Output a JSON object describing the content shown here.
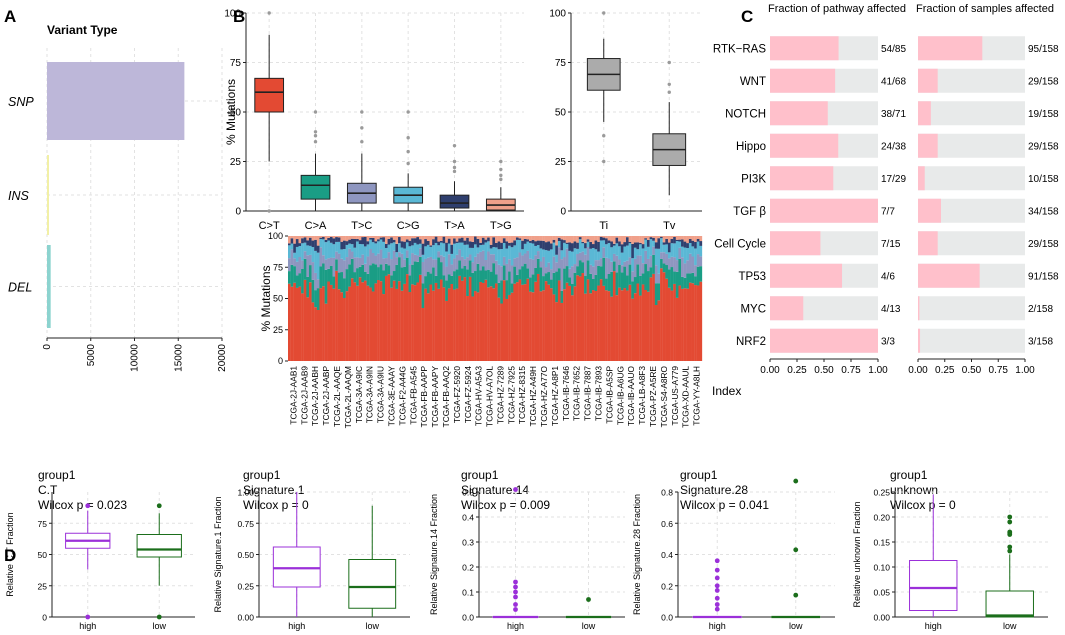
{
  "panel_labels": [
    "A",
    "B",
    "C",
    "D"
  ],
  "chart_data": [
    {
      "id": "A",
      "type": "bar",
      "orientation": "horizontal",
      "title": "Variant Type",
      "categories": [
        "SNP",
        "INS",
        "DEL"
      ],
      "values": [
        15700,
        70,
        420
      ],
      "colors": [
        "#bdb7d9",
        "#f2f0a6",
        "#8cd3cf"
      ],
      "xlim": [
        0,
        20000
      ],
      "xticks": [
        "0",
        "5000",
        "10000",
        "15000",
        "20000"
      ]
    },
    {
      "id": "B1",
      "type": "box",
      "ylabel": "% Mutations",
      "ylim": [
        0,
        100
      ],
      "yticks": [
        "0",
        "25",
        "50",
        "75",
        "100"
      ],
      "categories": [
        "C>T",
        "C>A",
        "T>C",
        "C>G",
        "T>A",
        "T>G"
      ],
      "colors": [
        "#e34a33",
        "#1a9d85",
        "#8e96c0",
        "#5ab8d5",
        "#2f3f6e",
        "#f0a08a"
      ],
      "boxes": [
        {
          "min": 25,
          "q1": 50,
          "median": 60,
          "q3": 67,
          "max": 89,
          "outliers": [
            100,
            0
          ]
        },
        {
          "min": 0,
          "q1": 6,
          "median": 13,
          "q3": 18,
          "max": 29,
          "outliers": [
            35,
            38,
            40,
            50
          ]
        },
        {
          "min": 0,
          "q1": 4,
          "median": 9,
          "q3": 14,
          "max": 29,
          "outliers": [
            35,
            42,
            50
          ]
        },
        {
          "min": 0,
          "q1": 4,
          "median": 8,
          "q3": 12,
          "max": 19,
          "outliers": [
            24,
            30,
            37,
            50
          ]
        },
        {
          "min": 0,
          "q1": 1.5,
          "median": 4,
          "q3": 8,
          "max": 15,
          "outliers": [
            20,
            22,
            25,
            33
          ]
        },
        {
          "min": 0,
          "q1": 0.5,
          "median": 3,
          "q3": 6,
          "max": 12,
          "outliers": [
            16,
            18,
            21,
            25
          ]
        }
      ]
    },
    {
      "id": "B2",
      "type": "box",
      "ylim": [
        0,
        100
      ],
      "yticks": [
        "0",
        "25",
        "50",
        "75",
        "100"
      ],
      "categories": [
        "Ti",
        "Tv"
      ],
      "colors": [
        "#ababab",
        "#ababab"
      ],
      "boxes": [
        {
          "min": 45,
          "q1": 61,
          "median": 69,
          "q3": 77,
          "max": 87,
          "outliers": [
            100,
            38,
            25
          ]
        },
        {
          "min": 8,
          "q1": 23,
          "median": 31,
          "q3": 39,
          "max": 55,
          "outliers": [
            60,
            64,
            75
          ]
        }
      ]
    },
    {
      "id": "B3",
      "type": "bar",
      "stacked": true,
      "ylabel": "% Mutations",
      "ylim": [
        0,
        100
      ],
      "yticks": [
        "0",
        "25",
        "50",
        "75",
        "100"
      ],
      "series_names": [
        "C>T",
        "C>A",
        "T>C",
        "C>G",
        "T>A",
        "T>G"
      ],
      "series_colors": [
        "#e34a33",
        "#1a9d85",
        "#8e96c0",
        "#5ab8d5",
        "#2f3f6e",
        "#f0a08a"
      ],
      "n_samples": 158,
      "xlabel": "Index",
      "sample_labels": [
        "TCGA-2J-AAB1",
        "TCGA-2J-AAB9",
        "TCGA-2J-AABH",
        "TCGA-2J-AABP",
        "TCGA-2L-AAQE",
        "TCGA-2L-AAQM",
        "TCGA-3A-A9IC",
        "TCGA-3A-A9IN",
        "TCGA-3A-A9IU",
        "TCGA-3E-AAAY",
        "TCGA-F2-A44G",
        "TCGA-FB-A545",
        "TCGA-FB-AAPP",
        "TCGA-FB-AAPY",
        "TCGA-FB-AAQ2",
        "TCGA-FZ-5920",
        "TCGA-FZ-5924",
        "TCGA-HV-A5A3",
        "TCGA-HV-A7OL",
        "TCGA-HZ-7289",
        "TCGA-HZ-7925",
        "TCGA-HZ-8315",
        "TCGA-HZ-A49H",
        "TCGA-HZ-A77O",
        "TCGA-HZ-A8P1",
        "TCGA-IB-7646",
        "TCGA-IB-7652",
        "TCGA-IB-7887",
        "TCGA-IB-7893",
        "TCGA-IB-A5SP",
        "TCGA-IB-A6UG",
        "TCGA-IB-AAUO",
        "TCGA-LB-A8F3",
        "TCGA-PZ-A5RE",
        "TCGA-S4-A8RO",
        "TCGA-US-A779",
        "TCGA-XD-AAUL",
        "TCGA-YY-A8LH"
      ]
    },
    {
      "id": "C1",
      "type": "bar",
      "orientation": "horizontal",
      "title": "Fraction of pathway affected",
      "categories": [
        "RTK−RAS",
        "WNT",
        "NOTCH",
        "Hippo",
        "PI3K",
        "TGF β",
        "Cell Cycle",
        "TP53",
        "MYC",
        "NRF2"
      ],
      "values": [
        0.635,
        0.603,
        0.535,
        0.632,
        0.586,
        1.0,
        0.467,
        0.667,
        0.308,
        1.0
      ],
      "labels": [
        "54/85",
        "41/68",
        "38/71",
        "24/38",
        "17/29",
        "7/7",
        "7/15",
        "4/6",
        "4/13",
        "3/3"
      ],
      "xlim": [
        0,
        1
      ],
      "xticks": [
        "0.00",
        "0.25",
        "0.50",
        "0.75",
        "1.00"
      ],
      "fill": "#ffc0cb",
      "background": "#e8eaea"
    },
    {
      "id": "C2",
      "type": "bar",
      "orientation": "horizontal",
      "title": "Fraction of samples affected",
      "values": [
        0.601,
        0.184,
        0.12,
        0.184,
        0.063,
        0.215,
        0.184,
        0.576,
        0.013,
        0.019
      ],
      "labels": [
        "95/158",
        "29/158",
        "19/158",
        "29/158",
        "10/158",
        "34/158",
        "29/158",
        "91/158",
        "2/158",
        "3/158"
      ],
      "xlim": [
        0,
        1
      ],
      "xticks": [
        "0.00",
        "0.25",
        "0.50",
        "0.75",
        "1.00"
      ],
      "fill": "#ffc0cb",
      "background": "#e8eaea"
    },
    {
      "id": "D1",
      "type": "box",
      "title_lines": [
        "group1",
        "C.T",
        "Wilcox p = 0.023"
      ],
      "ylabel": "Relative C.T Fraction",
      "ylim": [
        0,
        100
      ],
      "yticks": [
        "0",
        "25",
        "50",
        "75"
      ],
      "ytick_values": [
        0,
        25,
        50,
        75
      ],
      "categories": [
        "high",
        "low"
      ],
      "colors": [
        "#9b30d9",
        "#1b6e1b"
      ],
      "boxes": [
        {
          "min": 38,
          "q1": 55,
          "median": 61,
          "q3": 67,
          "max": 85,
          "outliers": [
            89,
            0
          ]
        },
        {
          "min": 25,
          "q1": 48,
          "median": 54,
          "q3": 66,
          "max": 83,
          "outliers": [
            89,
            0
          ]
        }
      ]
    },
    {
      "id": "D2",
      "type": "box",
      "title_lines": [
        "group1",
        "Signature.1",
        "Wilcox p = 0"
      ],
      "ylabel": "Relative Signature.1 Fraction",
      "ylim": [
        0,
        1
      ],
      "yticks": [
        "0.00",
        "0.25",
        "0.50",
        "0.75",
        "1.00"
      ],
      "ytick_values": [
        0,
        0.25,
        0.5,
        0.75,
        1.0
      ],
      "categories": [
        "high",
        "low"
      ],
      "colors": [
        "#9b30d9",
        "#1b6e1b"
      ],
      "boxes": [
        {
          "min": 0,
          "q1": 0.24,
          "median": 0.39,
          "q3": 0.56,
          "max": 1.0,
          "outliers": []
        },
        {
          "min": 0,
          "q1": 0.07,
          "median": 0.24,
          "q3": 0.46,
          "max": 0.89,
          "outliers": []
        }
      ]
    },
    {
      "id": "D3",
      "type": "box",
      "title_lines": [
        "group1",
        "Signature.14",
        "Wilcox p = 0.009"
      ],
      "ylabel": "Relative Signature.14 Fraction",
      "ylim": [
        0,
        0.5
      ],
      "yticks": [
        "0.0",
        "0.1",
        "0.2",
        "0.3",
        "0.4",
        "0.5"
      ],
      "ytick_values": [
        0,
        0.1,
        0.2,
        0.3,
        0.4,
        0.5
      ],
      "categories": [
        "high",
        "low"
      ],
      "colors": [
        "#9b30d9",
        "#1b6e1b"
      ],
      "boxes": [
        {
          "min": 0,
          "q1": 0,
          "median": 0,
          "q3": 0,
          "max": 0,
          "outliers": [
            0.51,
            0.14,
            0.12,
            0.1,
            0.08,
            0.05,
            0.03
          ]
        },
        {
          "min": 0,
          "q1": 0,
          "median": 0,
          "q3": 0,
          "max": 0,
          "outliers": [
            0.07
          ]
        }
      ]
    },
    {
      "id": "D4",
      "type": "box",
      "title_lines": [
        "group1",
        "Signature.28",
        "Wilcox p = 0.041"
      ],
      "ylabel": "Relative Signature.28 Fraction",
      "ylim": [
        0,
        0.8
      ],
      "yticks": [
        "0.0",
        "0.2",
        "0.4",
        "0.6",
        "0.8"
      ],
      "ytick_values": [
        0,
        0.2,
        0.4,
        0.6,
        0.8
      ],
      "categories": [
        "high",
        "low"
      ],
      "colors": [
        "#9b30d9",
        "#1b6e1b"
      ],
      "boxes": [
        {
          "min": 0,
          "q1": 0,
          "median": 0,
          "q3": 0,
          "max": 0,
          "outliers": [
            0.36,
            0.3,
            0.25,
            0.2,
            0.17,
            0.12,
            0.08,
            0.05
          ]
        },
        {
          "min": 0,
          "q1": 0,
          "median": 0,
          "q3": 0,
          "max": 0,
          "outliers": [
            0.87,
            0.43,
            0.14
          ]
        }
      ]
    },
    {
      "id": "D5",
      "type": "box",
      "title_lines": [
        "group1",
        "unknown",
        "Wilcox p = 0"
      ],
      "ylabel": "Relative unknown Fraction",
      "ylim": [
        0,
        0.25
      ],
      "yticks": [
        "0.00",
        "0.05",
        "0.10",
        "0.15",
        "0.20",
        "0.25"
      ],
      "ytick_values": [
        0,
        0.05,
        0.1,
        0.15,
        0.2,
        0.25
      ],
      "categories": [
        "high",
        "low"
      ],
      "colors": [
        "#9b30d9",
        "#1b6e1b"
      ],
      "boxes": [
        {
          "min": 0,
          "q1": 0.013,
          "median": 0.058,
          "q3": 0.113,
          "max": 0.245,
          "outliers": []
        },
        {
          "min": 0,
          "q1": 0,
          "median": 0.003,
          "q3": 0.052,
          "max": 0.125,
          "outliers": [
            0.2,
            0.19,
            0.17,
            0.168,
            0.165,
            0.14,
            0.132
          ]
        }
      ]
    }
  ]
}
